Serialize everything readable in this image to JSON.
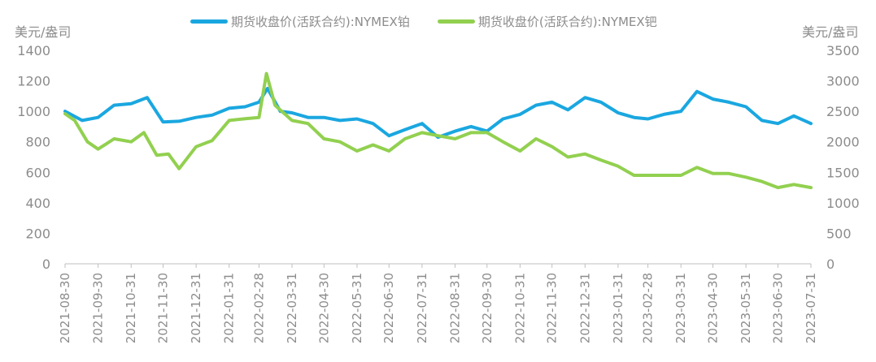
{
  "chart_data": {
    "type": "line",
    "title": "",
    "y_left_unit": "美元/盎司",
    "y_right_unit": "美元/盎司",
    "y_left_ticks": [
      "0",
      "200",
      "400",
      "600",
      "800",
      "1000",
      "1200",
      "1400"
    ],
    "y_right_ticks": [
      "0",
      "500",
      "1000",
      "1500",
      "2000",
      "2500",
      "3000",
      "3500"
    ],
    "ylim_left": [
      0,
      1400
    ],
    "ylim_right": [
      0,
      3500
    ],
    "x_ticks": [
      "2021-08-30",
      "2021-09-30",
      "2021-10-31",
      "2021-11-30",
      "2021-12-31",
      "2022-01-31",
      "2022-02-28",
      "2022-03-31",
      "2022-04-30",
      "2022-05-31",
      "2022-06-30",
      "2022-07-31",
      "2022-08-31",
      "2022-09-30",
      "2022-10-31",
      "2022-11-30",
      "2022-12-31",
      "2023-01-31",
      "2023-02-28",
      "2023-03-31",
      "2023-04-30",
      "2023-05-31",
      "2023-06-30",
      "2023-07-31"
    ],
    "legend_position": "top",
    "grid": false,
    "series": [
      {
        "name": "期货收盘价(活跃合约):NYMEX铂",
        "axis": "left",
        "color": "#1aa7e0",
        "x": [
          "2021-08-30",
          "2021-09-15",
          "2021-09-30",
          "2021-10-15",
          "2021-10-31",
          "2021-11-15",
          "2021-11-30",
          "2021-12-15",
          "2021-12-31",
          "2022-01-15",
          "2022-01-31",
          "2022-02-15",
          "2022-02-28",
          "2022-03-08",
          "2022-03-20",
          "2022-03-31",
          "2022-04-15",
          "2022-04-30",
          "2022-05-15",
          "2022-05-31",
          "2022-06-15",
          "2022-06-30",
          "2022-07-15",
          "2022-07-31",
          "2022-08-15",
          "2022-08-31",
          "2022-09-15",
          "2022-09-30",
          "2022-10-15",
          "2022-10-31",
          "2022-11-15",
          "2022-11-30",
          "2022-12-15",
          "2022-12-31",
          "2023-01-15",
          "2023-01-31",
          "2023-02-15",
          "2023-02-28",
          "2023-03-15",
          "2023-03-31",
          "2023-04-15",
          "2023-04-30",
          "2023-05-15",
          "2023-05-31",
          "2023-06-15",
          "2023-06-30",
          "2023-07-15",
          "2023-07-31"
        ],
        "values": [
          1000,
          940,
          960,
          1040,
          1050,
          1090,
          930,
          935,
          960,
          975,
          1020,
          1030,
          1060,
          1150,
          1000,
          990,
          960,
          960,
          940,
          950,
          920,
          840,
          880,
          920,
          830,
          870,
          900,
          870,
          950,
          980,
          1040,
          1060,
          1010,
          1090,
          1060,
          990,
          960,
          950,
          980,
          1000,
          1130,
          1080,
          1060,
          1030,
          940,
          920,
          970,
          920
        ]
      },
      {
        "name": "期货收盘价(活跃合约):NYMEX钯",
        "axis": "right",
        "color": "#92d050",
        "x": [
          "2021-08-30",
          "2021-09-08",
          "2021-09-20",
          "2021-09-30",
          "2021-10-15",
          "2021-10-31",
          "2021-11-12",
          "2021-11-24",
          "2021-12-05",
          "2021-12-15",
          "2021-12-31",
          "2022-01-15",
          "2022-01-31",
          "2022-02-15",
          "2022-02-28",
          "2022-03-07",
          "2022-03-15",
          "2022-03-31",
          "2022-04-15",
          "2022-04-30",
          "2022-05-15",
          "2022-05-31",
          "2022-06-15",
          "2022-06-30",
          "2022-07-15",
          "2022-07-31",
          "2022-08-15",
          "2022-08-31",
          "2022-09-15",
          "2022-09-30",
          "2022-10-15",
          "2022-10-31",
          "2022-11-15",
          "2022-11-30",
          "2022-12-15",
          "2022-12-31",
          "2023-01-15",
          "2023-01-31",
          "2023-02-15",
          "2023-02-28",
          "2023-03-15",
          "2023-03-31",
          "2023-04-15",
          "2023-04-30",
          "2023-05-15",
          "2023-05-31",
          "2023-06-15",
          "2023-06-30",
          "2023-07-15",
          "2023-07-31"
        ],
        "values": [
          2460,
          2350,
          2000,
          1880,
          2050,
          2000,
          2150,
          1780,
          1800,
          1560,
          1920,
          2020,
          2350,
          2380,
          2400,
          3120,
          2600,
          2350,
          2300,
          2050,
          2000,
          1850,
          1950,
          1850,
          2050,
          2150,
          2100,
          2050,
          2150,
          2150,
          2000,
          1850,
          2050,
          1920,
          1750,
          1800,
          1700,
          1600,
          1450,
          1450,
          1450,
          1450,
          1580,
          1480,
          1480,
          1420,
          1350,
          1250,
          1300,
          1250
        ]
      }
    ]
  }
}
